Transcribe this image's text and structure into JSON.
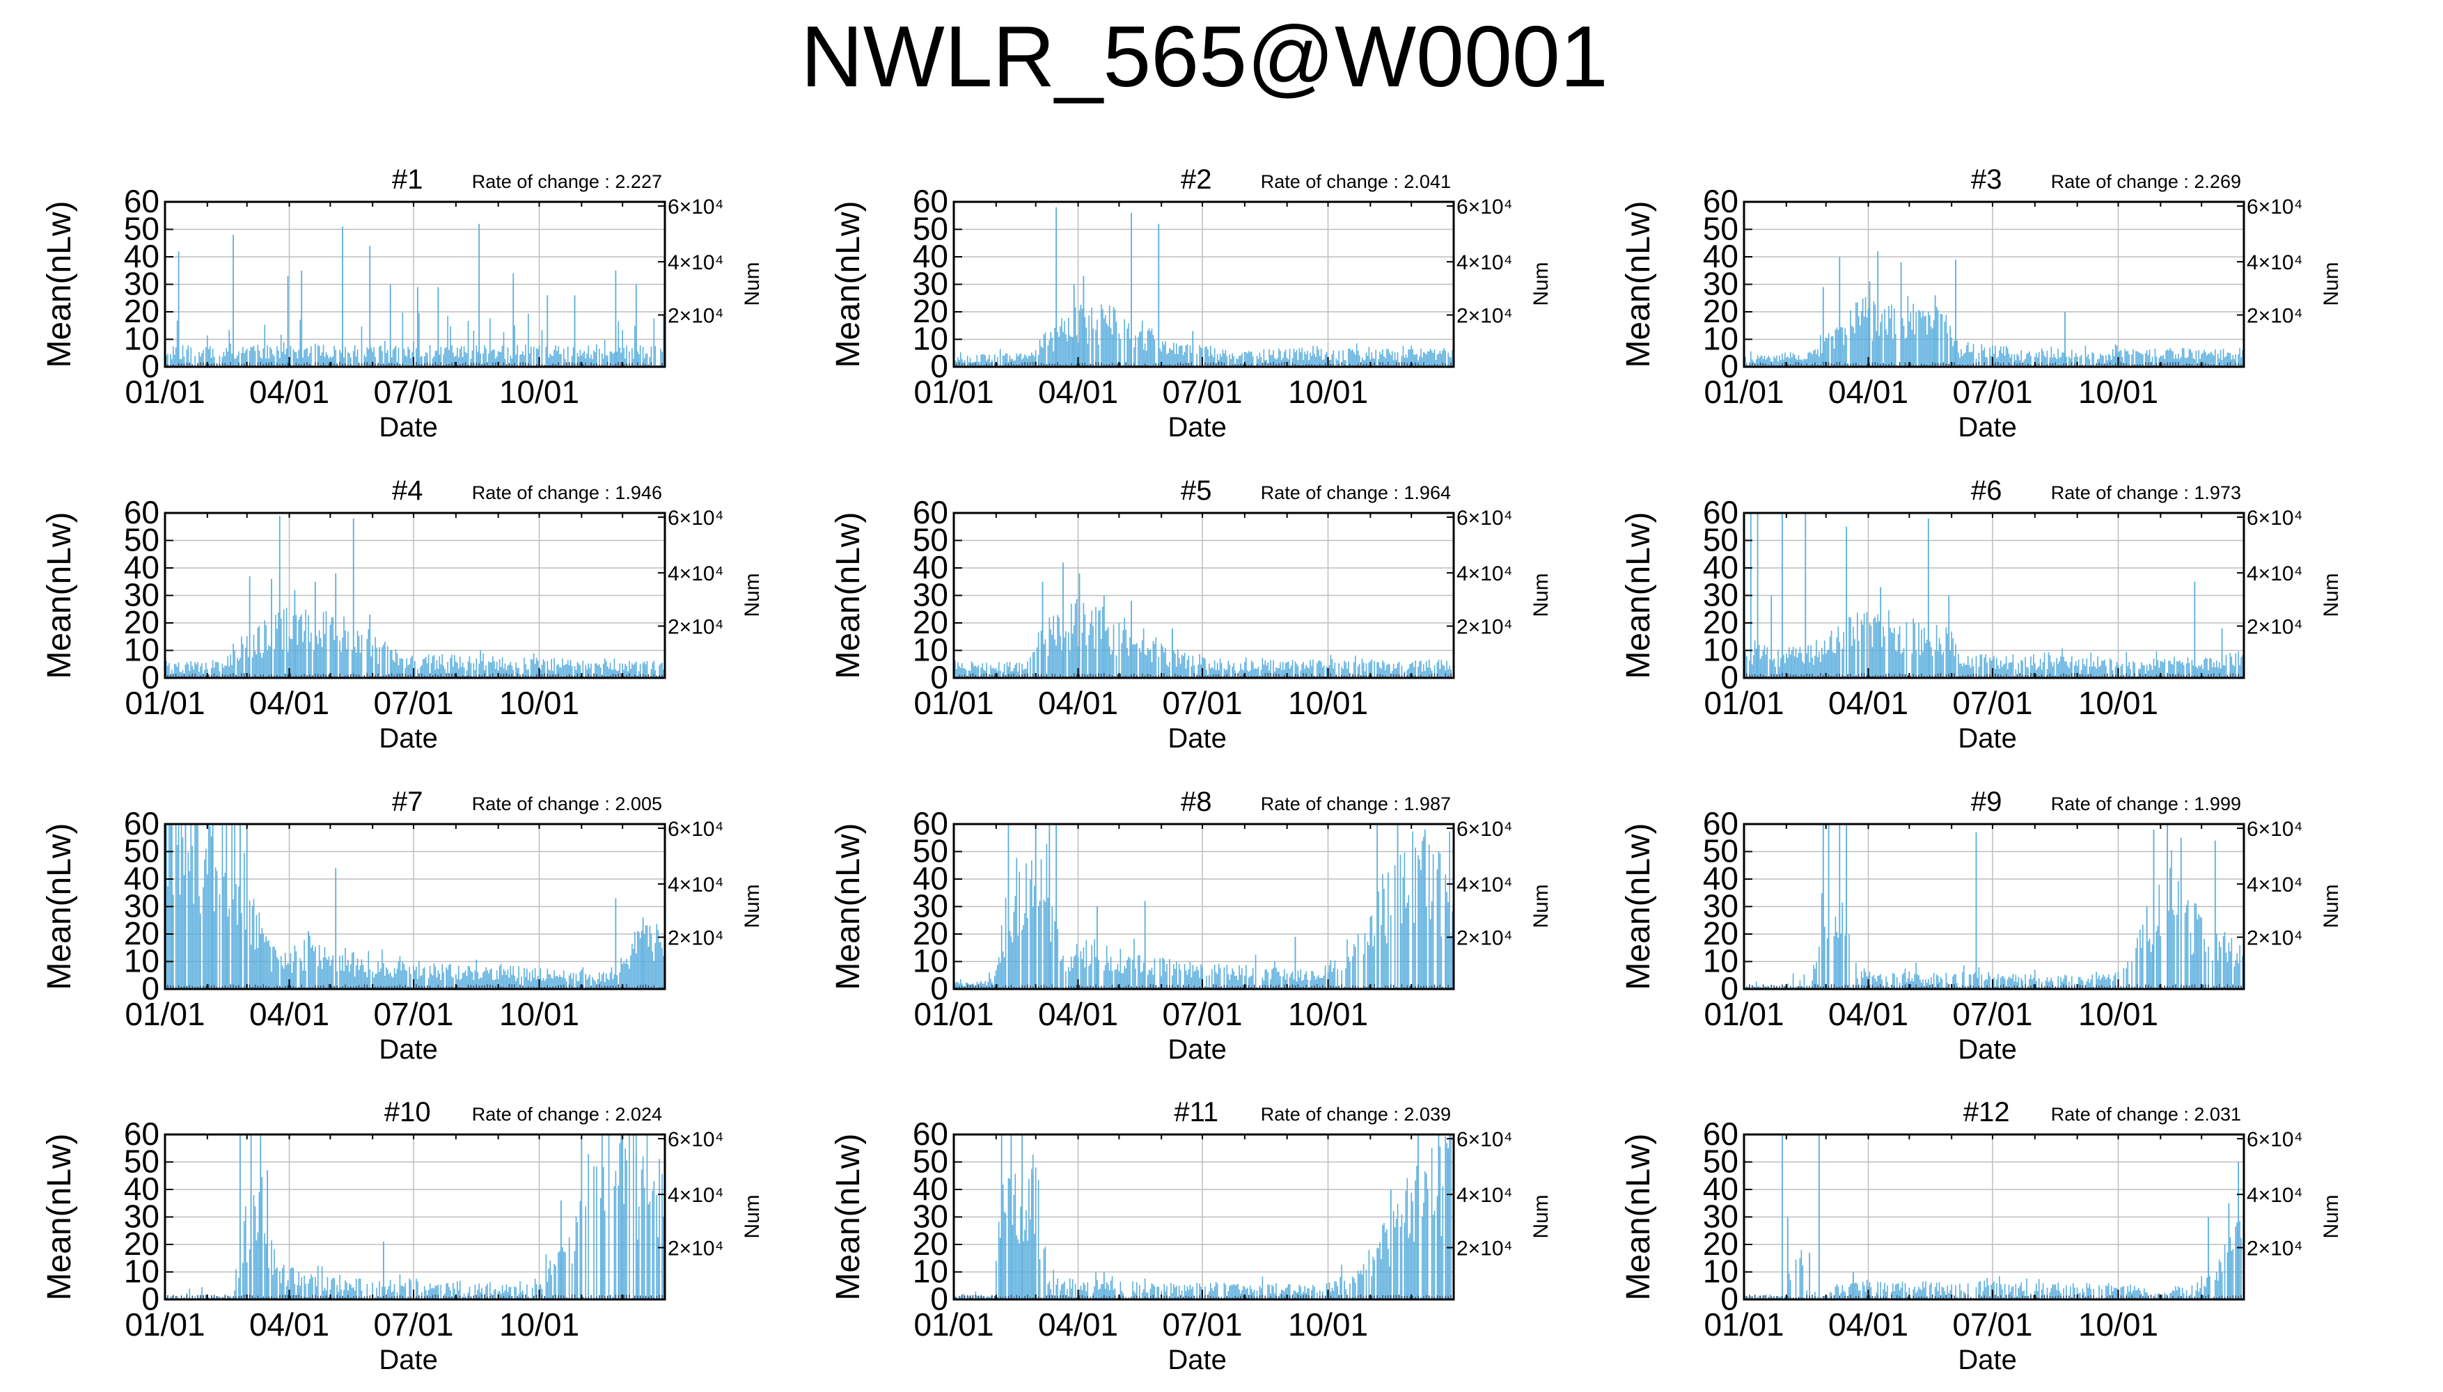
{
  "title": "NWLR_565@W0001",
  "colors": {
    "series": "#5aaede",
    "num": "#1f3f66",
    "axis": "#000000",
    "grid": "#bdbdbd"
  },
  "chart_data": [
    {
      "type": "bar",
      "title": "#1",
      "annotation": "Rate of change : 2.227",
      "xlabel": "Date",
      "ylabel": "Mean(nLw)",
      "y2label": "Num",
      "ylim": [
        0,
        60
      ],
      "yticks": [
        "0",
        "10",
        "20",
        "30",
        "40",
        "50",
        "60"
      ],
      "xticks": [
        "01/01",
        "04/01",
        "07/01",
        "10/01"
      ],
      "y2ticks": [
        "2×10⁴",
        "4×10⁴",
        "6×10⁴"
      ],
      "grid": true,
      "profile": [
        [
          0,
          6
        ],
        [
          60,
          6
        ],
        [
          120,
          6
        ],
        [
          180,
          6
        ],
        [
          240,
          6
        ],
        [
          300,
          6
        ],
        [
          366,
          6
        ]
      ],
      "spikes": [
        [
          10,
          42
        ],
        [
          50,
          48
        ],
        [
          90,
          33
        ],
        [
          100,
          35
        ],
        [
          130,
          51
        ],
        [
          150,
          44
        ],
        [
          165,
          30
        ],
        [
          185,
          29
        ],
        [
          200,
          29
        ],
        [
          230,
          52
        ],
        [
          255,
          34
        ],
        [
          280,
          26
        ],
        [
          300,
          26
        ],
        [
          330,
          35
        ],
        [
          345,
          30
        ]
      ],
      "noise": 14,
      "density": 0.8
    },
    {
      "type": "bar",
      "title": "#2",
      "annotation": "Rate of change : 2.041",
      "xlabel": "Date",
      "ylabel": "Mean(nLw)",
      "y2label": "Num",
      "ylim": [
        0,
        60
      ],
      "yticks": [
        "0",
        "10",
        "20",
        "30",
        "40",
        "50",
        "60"
      ],
      "xticks": [
        "01/01",
        "04/01",
        "07/01",
        "10/01"
      ],
      "y2ticks": [
        "2×10⁴",
        "4×10⁴",
        "6×10⁴"
      ],
      "grid": true,
      "profile": [
        [
          0,
          3
        ],
        [
          50,
          4
        ],
        [
          70,
          10
        ],
        [
          90,
          17
        ],
        [
          120,
          17
        ],
        [
          140,
          12
        ],
        [
          155,
          7
        ],
        [
          200,
          5
        ],
        [
          366,
          5
        ]
      ],
      "spikes": [
        [
          75,
          58
        ],
        [
          88,
          30
        ],
        [
          95,
          33
        ],
        [
          130,
          56
        ],
        [
          150,
          52
        ],
        [
          175,
          13
        ]
      ],
      "noise": 3,
      "density": 0.85
    },
    {
      "type": "bar",
      "title": "#3",
      "annotation": "Rate of change : 2.269",
      "xlabel": "Date",
      "ylabel": "Mean(nLw)",
      "y2label": "Num",
      "ylim": [
        0,
        60
      ],
      "yticks": [
        "0",
        "10",
        "20",
        "30",
        "40",
        "50",
        "60"
      ],
      "xticks": [
        "01/01",
        "04/01",
        "07/01",
        "10/01"
      ],
      "y2ticks": [
        "2×10⁴",
        "4×10⁴",
        "6×10⁴"
      ],
      "grid": true,
      "profile": [
        [
          0,
          3
        ],
        [
          50,
          4
        ],
        [
          65,
          12
        ],
        [
          90,
          20
        ],
        [
          130,
          18
        ],
        [
          150,
          15
        ],
        [
          158,
          7
        ],
        [
          200,
          5
        ],
        [
          366,
          5
        ]
      ],
      "spikes": [
        [
          58,
          29
        ],
        [
          70,
          40
        ],
        [
          92,
          31
        ],
        [
          98,
          42
        ],
        [
          115,
          38
        ],
        [
          140,
          26
        ],
        [
          155,
          39
        ],
        [
          235,
          20
        ]
      ],
      "noise": 3,
      "density": 0.85
    },
    {
      "type": "bar",
      "title": "#4",
      "annotation": "Rate of change : 1.946",
      "xlabel": "Date",
      "ylabel": "Mean(nLw)",
      "y2label": "Num",
      "ylim": [
        0,
        60
      ],
      "yticks": [
        "0",
        "10",
        "20",
        "30",
        "40",
        "50",
        "60"
      ],
      "xticks": [
        "01/01",
        "04/01",
        "07/01",
        "10/01"
      ],
      "y2ticks": [
        "2×10⁴",
        "4×10⁴",
        "6×10⁴"
      ],
      "grid": true,
      "profile": [
        [
          0,
          4
        ],
        [
          40,
          5
        ],
        [
          60,
          14
        ],
        [
          90,
          20
        ],
        [
          120,
          18
        ],
        [
          140,
          14
        ],
        [
          160,
          10
        ],
        [
          175,
          7
        ],
        [
          230,
          6
        ],
        [
          366,
          5
        ]
      ],
      "spikes": [
        [
          62,
          37
        ],
        [
          78,
          36
        ],
        [
          84,
          59
        ],
        [
          95,
          32
        ],
        [
          110,
          35
        ],
        [
          125,
          38
        ],
        [
          138,
          58
        ],
        [
          150,
          23
        ]
      ],
      "noise": 3,
      "density": 0.85
    },
    {
      "type": "bar",
      "title": "#5",
      "annotation": "Rate of change : 1.964",
      "xlabel": "Date",
      "ylabel": "Mean(nLw)",
      "y2label": "Num",
      "ylim": [
        0,
        60
      ],
      "yticks": [
        "0",
        "10",
        "20",
        "30",
        "40",
        "50",
        "60"
      ],
      "xticks": [
        "01/01",
        "04/01",
        "07/01",
        "10/01"
      ],
      "y2ticks": [
        "2×10⁴",
        "4×10⁴",
        "6×10⁴"
      ],
      "grid": true,
      "profile": [
        [
          0,
          4
        ],
        [
          50,
          5
        ],
        [
          65,
          15
        ],
        [
          90,
          22
        ],
        [
          120,
          18
        ],
        [
          145,
          12
        ],
        [
          160,
          8
        ],
        [
          200,
          5
        ],
        [
          366,
          5
        ]
      ],
      "spikes": [
        [
          65,
          35
        ],
        [
          80,
          42
        ],
        [
          92,
          38
        ],
        [
          110,
          30
        ],
        [
          130,
          28
        ],
        [
          160,
          18
        ]
      ],
      "noise": 3,
      "density": 0.85
    },
    {
      "type": "bar",
      "title": "#6",
      "annotation": "Rate of change : 1.973",
      "xlabel": "Date",
      "ylabel": "Mean(nLw)",
      "y2label": "Num",
      "ylim": [
        0,
        60
      ],
      "yticks": [
        "0",
        "10",
        "20",
        "30",
        "40",
        "50",
        "60"
      ],
      "xticks": [
        "01/01",
        "04/01",
        "07/01",
        "10/01"
      ],
      "y2ticks": [
        "2×10⁴",
        "4×10⁴",
        "6×10⁴"
      ],
      "grid": true,
      "profile": [
        [
          0,
          10
        ],
        [
          30,
          8
        ],
        [
          50,
          10
        ],
        [
          90,
          20
        ],
        [
          120,
          18
        ],
        [
          150,
          14
        ],
        [
          160,
          7
        ],
        [
          330,
          5
        ],
        [
          366,
          8
        ]
      ],
      "spikes": [
        [
          5,
          60
        ],
        [
          10,
          60
        ],
        [
          20,
          30
        ],
        [
          28,
          60
        ],
        [
          45,
          60
        ],
        [
          75,
          55
        ],
        [
          100,
          33
        ],
        [
          135,
          58
        ],
        [
          150,
          30
        ],
        [
          330,
          35
        ],
        [
          350,
          18
        ]
      ],
      "noise": 4,
      "density": 0.85
    },
    {
      "type": "bar",
      "title": "#7",
      "annotation": "Rate of change : 2.005",
      "xlabel": "Date",
      "ylabel": "Mean(nLw)",
      "y2label": "Num",
      "ylim": [
        0,
        60
      ],
      "yticks": [
        "0",
        "10",
        "20",
        "30",
        "40",
        "50",
        "60"
      ],
      "xticks": [
        "01/01",
        "04/01",
        "07/01",
        "10/01"
      ],
      "y2ticks": [
        "2×10⁴",
        "4×10⁴",
        "6×10⁴"
      ],
      "grid": true,
      "profile": [
        [
          0,
          60
        ],
        [
          30,
          55
        ],
        [
          55,
          45
        ],
        [
          65,
          25
        ],
        [
          80,
          12
        ],
        [
          120,
          12
        ],
        [
          160,
          8
        ],
        [
          330,
          5
        ],
        [
          345,
          18
        ],
        [
          366,
          18
        ]
      ],
      "spikes": [
        [
          5,
          60
        ],
        [
          15,
          60
        ],
        [
          35,
          60
        ],
        [
          45,
          60
        ],
        [
          55,
          60
        ],
        [
          60,
          60
        ],
        [
          70,
          20
        ],
        [
          105,
          21
        ],
        [
          125,
          44
        ],
        [
          330,
          33
        ],
        [
          350,
          26
        ]
      ],
      "noise": 4,
      "density": 0.9
    },
    {
      "type": "bar",
      "title": "#8",
      "annotation": "Rate of change : 1.987",
      "xlabel": "Date",
      "ylabel": "Mean(nLw)",
      "y2label": "Num",
      "ylim": [
        0,
        60
      ],
      "yticks": [
        "0",
        "10",
        "20",
        "30",
        "40",
        "50",
        "60"
      ],
      "xticks": [
        "01/01",
        "04/01",
        "07/01",
        "10/01"
      ],
      "y2ticks": [
        "2×10⁴",
        "4×10⁴",
        "6×10⁴"
      ],
      "grid": true,
      "profile": [
        [
          0,
          2
        ],
        [
          30,
          2
        ],
        [
          40,
          35
        ],
        [
          70,
          40
        ],
        [
          78,
          10
        ],
        [
          100,
          14
        ],
        [
          160,
          8
        ],
        [
          270,
          5
        ],
        [
          300,
          25
        ],
        [
          340,
          45
        ],
        [
          366,
          40
        ]
      ],
      "spikes": [
        [
          40,
          60
        ],
        [
          60,
          60
        ],
        [
          70,
          60
        ],
        [
          75,
          60
        ],
        [
          105,
          30
        ],
        [
          140,
          32
        ],
        [
          250,
          19
        ],
        [
          310,
          60
        ],
        [
          325,
          60
        ],
        [
          345,
          58
        ],
        [
          360,
          30
        ]
      ],
      "noise": 6,
      "density": 0.8
    },
    {
      "type": "bar",
      "title": "#9",
      "annotation": "Rate of change : 1.999",
      "xlabel": "Date",
      "ylabel": "Mean(nLw)",
      "y2label": "Num",
      "ylim": [
        0,
        60
      ],
      "yticks": [
        "0",
        "10",
        "20",
        "30",
        "40",
        "50",
        "60"
      ],
      "xticks": [
        "01/01",
        "04/01",
        "07/01",
        "10/01"
      ],
      "y2ticks": [
        "2×10⁴",
        "4×10⁴",
        "6×10⁴"
      ],
      "grid": true,
      "profile": [
        [
          0,
          1
        ],
        [
          50,
          1
        ],
        [
          55,
          30
        ],
        [
          75,
          30
        ],
        [
          80,
          6
        ],
        [
          120,
          5
        ],
        [
          270,
          4
        ],
        [
          290,
          15
        ],
        [
          310,
          40
        ],
        [
          330,
          25
        ],
        [
          366,
          10
        ]
      ],
      "spikes": [
        [
          58,
          60
        ],
        [
          62,
          60
        ],
        [
          70,
          60
        ],
        [
          75,
          60
        ],
        [
          170,
          57
        ],
        [
          295,
          30
        ],
        [
          300,
          58
        ],
        [
          310,
          60
        ],
        [
          320,
          55
        ],
        [
          345,
          54
        ]
      ],
      "noise": 5,
      "density": 0.7
    },
    {
      "type": "bar",
      "title": "#10",
      "annotation": "Rate of change : 2.024",
      "xlabel": "Date",
      "ylabel": "Mean(nLw)",
      "y2label": "Num",
      "ylim": [
        0,
        60
      ],
      "yticks": [
        "0",
        "10",
        "20",
        "30",
        "40",
        "50",
        "60"
      ],
      "xticks": [
        "01/01",
        "04/01",
        "07/01",
        "10/01"
      ],
      "y2ticks": [
        "2×10⁴",
        "4×10⁴",
        "6×10⁴"
      ],
      "grid": true,
      "profile": [
        [
          0,
          1
        ],
        [
          50,
          1
        ],
        [
          55,
          20
        ],
        [
          70,
          40
        ],
        [
          82,
          10
        ],
        [
          120,
          6
        ],
        [
          270,
          4
        ],
        [
          290,
          15
        ],
        [
          310,
          40
        ],
        [
          340,
          50
        ],
        [
          366,
          40
        ]
      ],
      "spikes": [
        [
          55,
          60
        ],
        [
          63,
          60
        ],
        [
          70,
          60
        ],
        [
          75,
          47
        ],
        [
          160,
          21
        ],
        [
          290,
          36
        ],
        [
          305,
          60
        ],
        [
          320,
          60
        ],
        [
          335,
          60
        ],
        [
          345,
          53
        ]
      ],
      "noise": 5,
      "density": 0.7
    },
    {
      "type": "bar",
      "title": "#11",
      "annotation": "Rate of change : 2.039",
      "xlabel": "Date",
      "ylabel": "Mean(nLw)",
      "y2label": "Num",
      "ylim": [
        0,
        60
      ],
      "yticks": [
        "0",
        "10",
        "20",
        "30",
        "40",
        "50",
        "60"
      ],
      "xticks": [
        "01/01",
        "04/01",
        "07/01",
        "10/01"
      ],
      "y2ticks": [
        "2×10⁴",
        "4×10⁴",
        "6×10⁴"
      ],
      "grid": true,
      "profile": [
        [
          0,
          1
        ],
        [
          30,
          1
        ],
        [
          35,
          40
        ],
        [
          60,
          40
        ],
        [
          70,
          6
        ],
        [
          130,
          5
        ],
        [
          270,
          4
        ],
        [
          300,
          10
        ],
        [
          330,
          35
        ],
        [
          366,
          50
        ]
      ],
      "spikes": [
        [
          35,
          60
        ],
        [
          42,
          60
        ],
        [
          50,
          60
        ],
        [
          58,
          45
        ],
        [
          110,
          10
        ],
        [
          320,
          40
        ],
        [
          340,
          60
        ],
        [
          355,
          60
        ],
        [
          362,
          55
        ]
      ],
      "noise": 5,
      "density": 0.75
    },
    {
      "type": "bar",
      "title": "#12",
      "annotation": "Rate of change : 2.031",
      "xlabel": "Date",
      "ylabel": "Mean(nLw)",
      "y2label": "Num",
      "ylim": [
        0,
        60
      ],
      "yticks": [
        "0",
        "10",
        "20",
        "30",
        "40",
        "50",
        "60"
      ],
      "xticks": [
        "01/01",
        "04/01",
        "07/01",
        "10/01"
      ],
      "y2ticks": [
        "2×10⁴",
        "4×10⁴",
        "6×10⁴"
      ],
      "grid": true,
      "profile": [
        [
          0,
          1
        ],
        [
          30,
          1
        ],
        [
          40,
          25
        ],
        [
          45,
          1
        ],
        [
          60,
          1
        ],
        [
          70,
          5
        ],
        [
          170,
          5
        ],
        [
          330,
          4
        ],
        [
          350,
          15
        ],
        [
          366,
          35
        ]
      ],
      "spikes": [
        [
          28,
          60
        ],
        [
          32,
          30
        ],
        [
          55,
          60
        ],
        [
          48,
          17
        ],
        [
          80,
          10
        ],
        [
          340,
          30
        ],
        [
          355,
          35
        ],
        [
          362,
          50
        ]
      ],
      "noise": 3,
      "density": 0.7
    }
  ]
}
